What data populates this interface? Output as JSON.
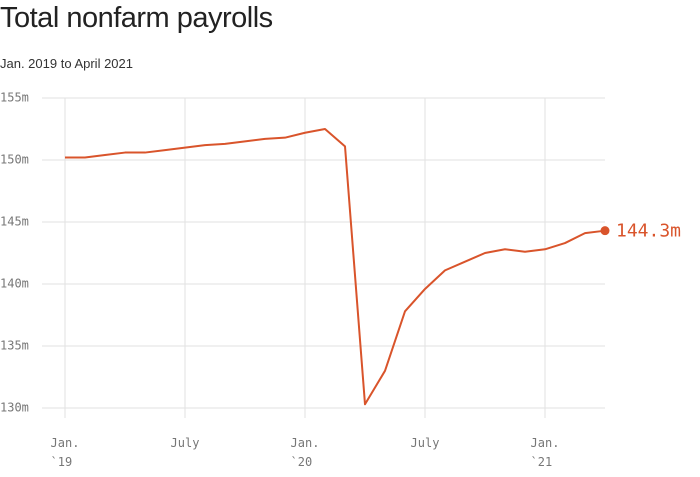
{
  "chart_data": {
    "type": "line",
    "title": "Total nonfarm payrolls",
    "subtitle": "Jan. 2019 to April 2021",
    "categories": [
      "Jan.\n`19",
      null,
      null,
      null,
      null,
      null,
      "July",
      null,
      null,
      null,
      null,
      null,
      "Jan.\n`20",
      null,
      null,
      null,
      null,
      null,
      "July",
      null,
      null,
      null,
      null,
      null,
      "Jan.\n`21",
      null,
      null,
      null
    ],
    "series": [
      {
        "color": "#d9542b",
        "values": [
          150.2,
          150.2,
          150.4,
          150.6,
          150.6,
          150.8,
          151.0,
          151.2,
          151.3,
          151.5,
          151.7,
          151.8,
          152.2,
          152.5,
          151.1,
          130.3,
          133.0,
          137.8,
          139.6,
          141.1,
          141.8,
          142.5,
          142.8,
          142.6,
          142.8,
          143.3,
          144.1,
          144.3
        ],
        "value_labels": [
          null,
          null,
          null,
          null,
          null,
          null,
          null,
          null,
          null,
          null,
          null,
          null,
          null,
          null,
          null,
          null,
          null,
          null,
          null,
          null,
          null,
          null,
          null,
          null,
          null,
          null,
          null,
          "144.3m"
        ]
      }
    ],
    "ylim": [
      130,
      155
    ],
    "yticks": [
      {
        "value": 130,
        "label": "130m"
      },
      {
        "value": 135,
        "label": "135m"
      },
      {
        "value": 140,
        "label": "140m"
      },
      {
        "value": 145,
        "label": "145m"
      },
      {
        "value": 150,
        "label": "150m"
      },
      {
        "value": 155,
        "label": "155m"
      }
    ],
    "grid": true
  }
}
